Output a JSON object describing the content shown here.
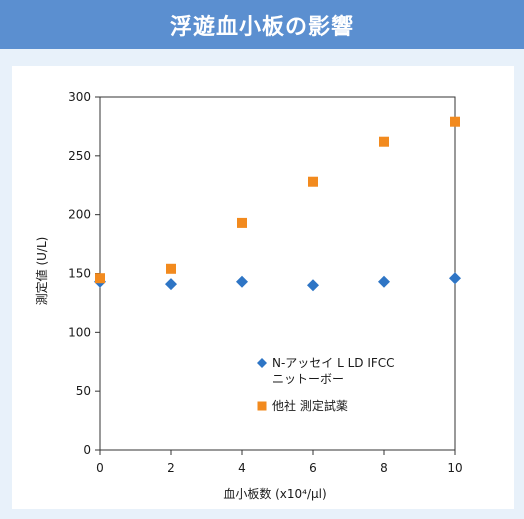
{
  "header": {
    "title": "浮遊血小板の影響"
  },
  "colors": {
    "header_bg": "#5b8fd0",
    "panel_bg": "#e8f1fa",
    "series_1": "#2e75c5",
    "series_2": "#f28a1e"
  },
  "chart_data": {
    "type": "scatter",
    "title": "浮遊血小板の影響",
    "xlabel": "血小板数 (x10⁴/μl)",
    "ylabel": "測定値 (U/L)",
    "xlim": [
      0,
      10
    ],
    "ylim": [
      0,
      300
    ],
    "xticks": [
      "0",
      "2",
      "4",
      "6",
      "8",
      "10"
    ],
    "yticks": [
      "0",
      "50",
      "100",
      "150",
      "200",
      "250",
      "300"
    ],
    "grid": false,
    "legend_position": "bottom-right inside",
    "series": [
      {
        "name": "N-アッセイ L LD IFCC ニットーボー",
        "name_lines": [
          "N-アッセイ L LD IFCC",
          "ニットーボー"
        ],
        "marker": "diamond",
        "x": [
          0,
          2,
          4,
          6,
          8,
          10
        ],
        "y": [
          143,
          141,
          143,
          140,
          143,
          146
        ]
      },
      {
        "name": "他社 測定試薬",
        "name_lines": [
          "他社 測定試薬"
        ],
        "marker": "square",
        "x": [
          0,
          2,
          4,
          6,
          8,
          10
        ],
        "y": [
          146,
          154,
          193,
          228,
          262,
          279
        ]
      }
    ]
  }
}
